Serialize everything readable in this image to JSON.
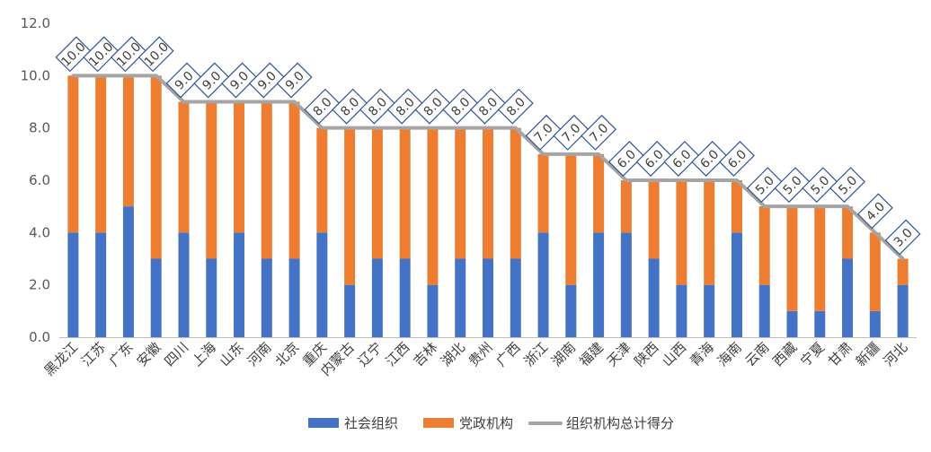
{
  "chart_data": {
    "type": "bar",
    "stacked": true,
    "categories": [
      "黑龙江",
      "江苏",
      "广东",
      "安徽",
      "四川",
      "上海",
      "山东",
      "河南",
      "北京",
      "重庆",
      "内蒙古",
      "辽宁",
      "江西",
      "吉林",
      "湖北",
      "贵州",
      "广西",
      "浙江",
      "湖南",
      "福建",
      "天津",
      "陕西",
      "山西",
      "青海",
      "海南",
      "云南",
      "西藏",
      "宁夏",
      "甘肃",
      "新疆",
      "河北"
    ],
    "series": [
      {
        "name": "社会组织",
        "color": "#4472C4",
        "values": [
          4,
          4,
          5,
          3,
          4,
          3,
          4,
          3,
          3,
          4,
          2,
          3,
          3,
          2,
          3,
          3,
          3,
          4,
          2,
          4,
          4,
          3,
          2,
          2,
          4,
          2,
          1,
          1,
          3,
          1,
          2
        ]
      },
      {
        "name": "党政机构",
        "color": "#ED7D31",
        "values": [
          6,
          6,
          5,
          7,
          5,
          6,
          5,
          6,
          6,
          4,
          6,
          5,
          5,
          6,
          5,
          5,
          5,
          3,
          5,
          3,
          2,
          3,
          4,
          4,
          2,
          3,
          4,
          4,
          2,
          3,
          1
        ]
      }
    ],
    "line_series": {
      "name": "组织机构总计得分",
      "color": "#A5A5A5",
      "values": [
        10,
        10,
        10,
        10,
        9,
        9,
        9,
        9,
        9,
        8,
        8,
        8,
        8,
        8,
        8,
        8,
        8,
        7,
        7,
        7,
        6,
        6,
        6,
        6,
        6,
        5,
        5,
        5,
        5,
        4,
        3
      ]
    },
    "data_labels": [
      "10.0",
      "10.0",
      "10.0",
      "10.0",
      "9.0",
      "9.0",
      "9.0",
      "9.0",
      "9.0",
      "8.0",
      "8.0",
      "8.0",
      "8.0",
      "8.0",
      "8.0",
      "8.0",
      "8.0",
      "7.0",
      "7.0",
      "7.0",
      "6.0",
      "6.0",
      "6.0",
      "6.0",
      "6.0",
      "5.0",
      "5.0",
      "5.0",
      "5.0",
      "4.0",
      "3.0"
    ],
    "y_ticks": [
      "0.0",
      "2.0",
      "4.0",
      "6.0",
      "8.0",
      "10.0",
      "12.0"
    ],
    "ylim": [
      0,
      12
    ],
    "grid": false,
    "legend_position": "bottom",
    "title": "",
    "xlabel": "",
    "ylabel": ""
  }
}
